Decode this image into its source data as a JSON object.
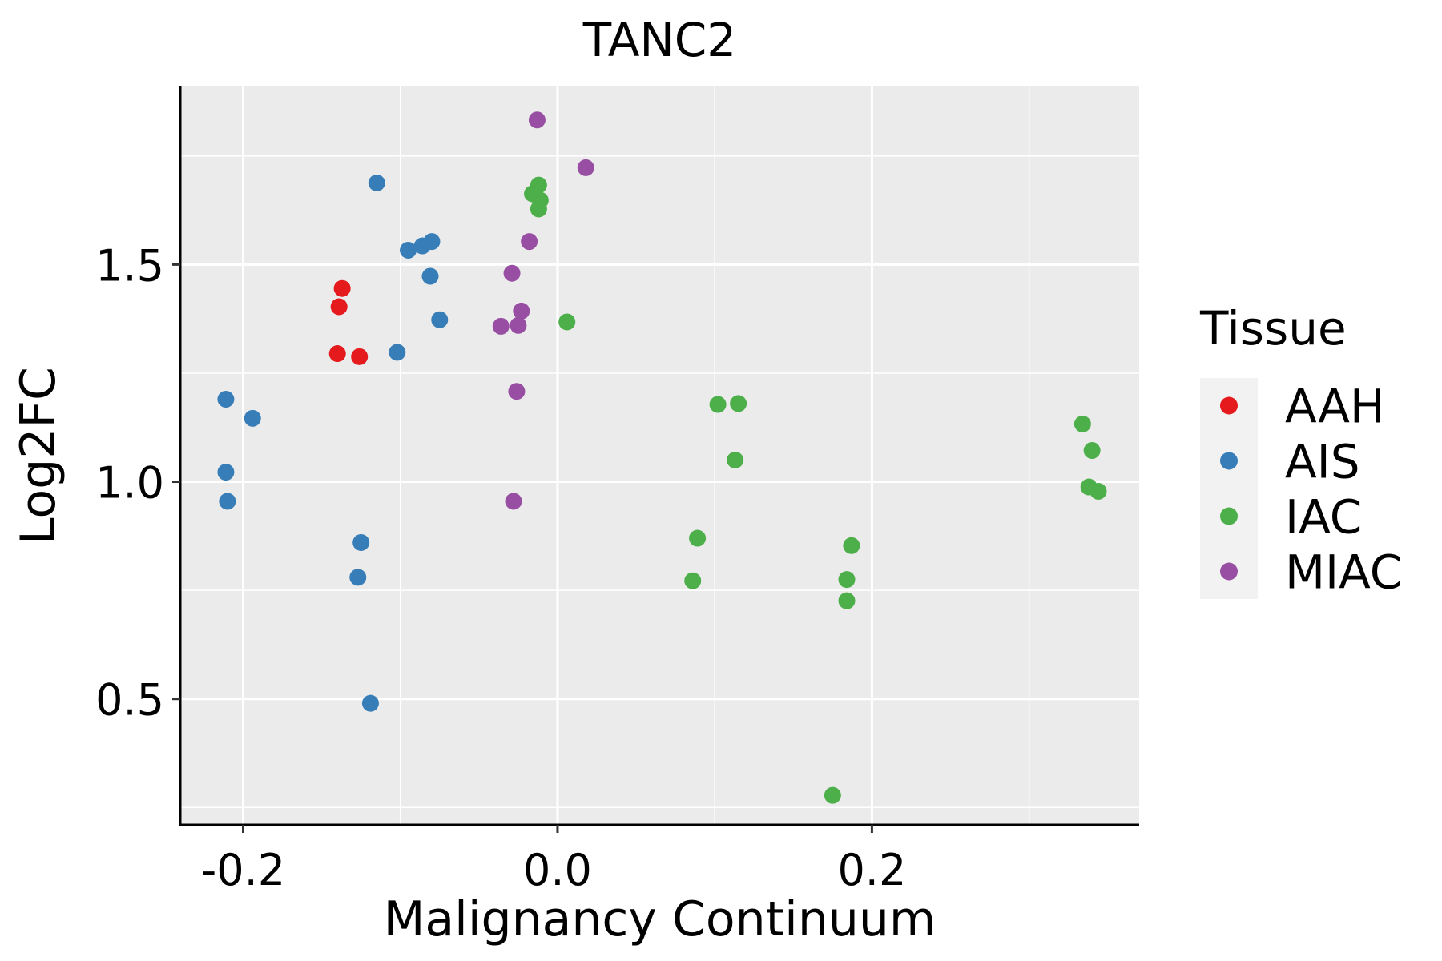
{
  "chart_data": {
    "type": "scatter",
    "title": "TANC2",
    "xlabel": "Malignancy Continuum",
    "ylabel": "Log2FC",
    "xlim": [
      -0.24,
      0.37
    ],
    "ylim": [
      0.21,
      1.91
    ],
    "x_major_ticks": [
      -0.2,
      0.0,
      0.2
    ],
    "x_tick_labels": [
      "-0.2",
      "0.0",
      "0.2"
    ],
    "x_minor_ticks": [
      -0.1,
      0.1,
      0.3
    ],
    "y_major_ticks": [
      0.5,
      1.0,
      1.5
    ],
    "y_tick_labels": [
      "0.5",
      "1.0",
      "1.5"
    ],
    "y_minor_ticks": [
      0.25,
      0.75,
      1.25,
      1.75
    ],
    "grid": true,
    "legend": {
      "title": "Tissue",
      "position": "right"
    },
    "series": [
      {
        "name": "AAH",
        "color": "#E41A1C",
        "points": [
          [
            -0.137,
            1.445
          ],
          [
            -0.139,
            1.403
          ],
          [
            -0.14,
            1.295
          ],
          [
            -0.126,
            1.288
          ]
        ]
      },
      {
        "name": "AIS",
        "color": "#377EB8",
        "points": [
          [
            -0.115,
            1.688
          ],
          [
            -0.095,
            1.533
          ],
          [
            -0.086,
            1.543
          ],
          [
            -0.08,
            1.553
          ],
          [
            -0.081,
            1.473
          ],
          [
            -0.075,
            1.373
          ],
          [
            -0.102,
            1.298
          ],
          [
            -0.211,
            1.19
          ],
          [
            -0.194,
            1.146
          ],
          [
            -0.211,
            1.022
          ],
          [
            -0.21,
            0.955
          ],
          [
            -0.125,
            0.86
          ],
          [
            -0.127,
            0.78
          ],
          [
            -0.119,
            0.49
          ]
        ]
      },
      {
        "name": "IAC",
        "color": "#4DAF4A",
        "points": [
          [
            -0.012,
            1.683
          ],
          [
            -0.016,
            1.663
          ],
          [
            -0.011,
            1.648
          ],
          [
            -0.012,
            1.628
          ],
          [
            0.006,
            1.368
          ],
          [
            0.102,
            1.178
          ],
          [
            0.115,
            1.18
          ],
          [
            0.113,
            1.05
          ],
          [
            0.089,
            0.87
          ],
          [
            0.086,
            0.772
          ],
          [
            0.187,
            0.853
          ],
          [
            0.184,
            0.775
          ],
          [
            0.184,
            0.726
          ],
          [
            0.175,
            0.278
          ],
          [
            0.334,
            1.133
          ],
          [
            0.34,
            1.072
          ],
          [
            0.338,
            0.988
          ],
          [
            0.344,
            0.978
          ]
        ]
      },
      {
        "name": "MIAC",
        "color": "#984EA3",
        "points": [
          [
            -0.013,
            1.833
          ],
          [
            0.018,
            1.723
          ],
          [
            -0.018,
            1.553
          ],
          [
            -0.029,
            1.48
          ],
          [
            -0.023,
            1.393
          ],
          [
            -0.036,
            1.358
          ],
          [
            -0.025,
            1.36
          ],
          [
            -0.026,
            1.208
          ],
          [
            -0.028,
            0.955
          ]
        ]
      }
    ]
  }
}
